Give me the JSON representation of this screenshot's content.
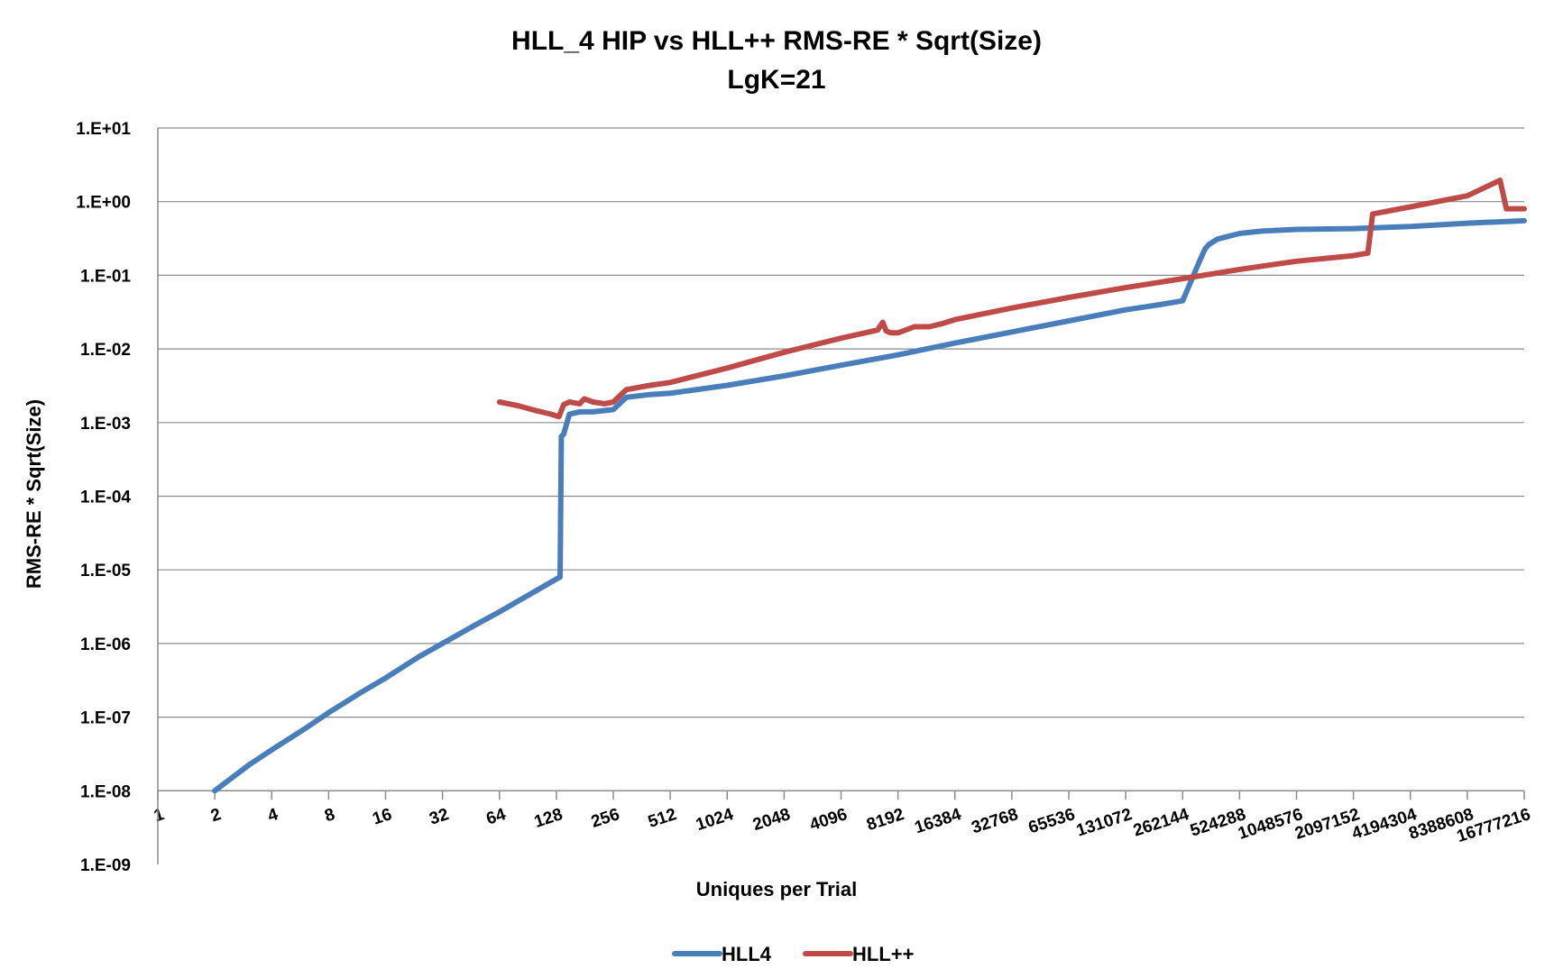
{
  "chart_data": {
    "type": "line",
    "title": "HLL_4 HIP vs HLL++ RMS-RE * Sqrt(Size)",
    "subtitle": "LgK=21",
    "xlabel": "Uniques per Trial",
    "ylabel": "RMS-RE * Sqrt(Size)",
    "x_scale": "log2",
    "y_scale": "log10",
    "xlim": [
      1,
      16777216
    ],
    "ylim": [
      1e-09,
      10
    ],
    "grid": true,
    "legend_position": "bottom",
    "x_tick_labels": [
      "1",
      "2",
      "4",
      "8",
      "16",
      "32",
      "64",
      "128",
      "256",
      "512",
      "1024",
      "2048",
      "4096",
      "8192",
      "16384",
      "32768",
      "65536",
      "131072",
      "262144",
      "524288",
      "1048576",
      "2097152",
      "4194304",
      "8388608",
      "16777216"
    ],
    "y_tick_labels": [
      "1.E-09",
      "1.E-08",
      "1.E-07",
      "1.E-06",
      "1.E-05",
      "1.E-04",
      "1.E-03",
      "1.E-02",
      "1.E-01",
      "1.E+00",
      "1.E+01"
    ],
    "series": [
      {
        "name": "HLL4",
        "color": "#4a7ebb",
        "x": [
          2,
          3,
          4,
          6,
          8,
          12,
          16,
          24,
          32,
          48,
          64,
          96,
          128,
          134,
          136,
          140,
          150,
          170,
          200,
          256,
          300,
          400,
          512,
          1024,
          2048,
          4096,
          8192,
          16384,
          32768,
          65536,
          131072,
          200000,
          262144,
          320000,
          345000,
          360000,
          400000,
          524288,
          700000,
          1048576,
          2097152,
          4194304,
          8388608,
          16777216
        ],
        "values": [
          1e-08,
          2.2e-08,
          3.6e-08,
          7e-08,
          1.15e-07,
          2.2e-07,
          3.4e-07,
          6.6e-07,
          1e-06,
          1.8e-06,
          2.7e-06,
          4.9e-06,
          7.5e-06,
          8e-06,
          0.00065,
          0.0007,
          0.0013,
          0.0014,
          0.0014,
          0.0015,
          0.0022,
          0.0024,
          0.0025,
          0.0032,
          0.0043,
          0.006,
          0.0083,
          0.012,
          0.017,
          0.024,
          0.034,
          0.04,
          0.045,
          0.15,
          0.23,
          0.26,
          0.31,
          0.37,
          0.4,
          0.42,
          0.43,
          0.46,
          0.51,
          0.55
        ]
      },
      {
        "name": "HLL++",
        "color": "#be4b48",
        "x": [
          64,
          80,
          100,
          120,
          132,
          140,
          150,
          170,
          180,
          200,
          230,
          256,
          300,
          400,
          512,
          1024,
          2048,
          4096,
          6400,
          6800,
          7100,
          7500,
          8192,
          10000,
          12000,
          14000,
          16384,
          32768,
          65536,
          131072,
          262144,
          524288,
          1048576,
          2097152,
          2500000,
          2650000,
          2800000,
          4194304,
          8388608,
          12500000,
          13500000,
          16777216
        ],
        "values": [
          0.0019,
          0.0017,
          0.00145,
          0.0013,
          0.0012,
          0.00175,
          0.0019,
          0.0018,
          0.0021,
          0.0019,
          0.0018,
          0.0019,
          0.0028,
          0.0032,
          0.0035,
          0.0055,
          0.009,
          0.014,
          0.018,
          0.023,
          0.0175,
          0.0165,
          0.0165,
          0.02,
          0.02,
          0.022,
          0.025,
          0.036,
          0.05,
          0.068,
          0.09,
          0.12,
          0.155,
          0.185,
          0.2,
          0.68,
          0.7,
          0.85,
          1.2,
          1.95,
          0.8,
          0.8
        ]
      }
    ]
  }
}
